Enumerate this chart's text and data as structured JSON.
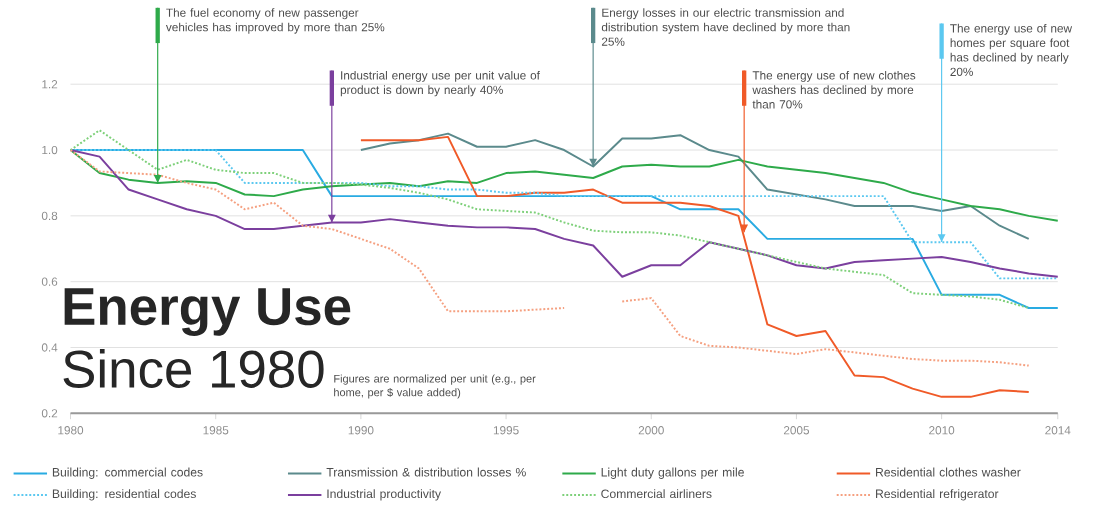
{
  "chart_data": {
    "type": "line",
    "title": "Energy Use",
    "subtitle": "Since 1980",
    "x": [
      1980,
      1981,
      1982,
      1983,
      1984,
      1985,
      1986,
      1987,
      1988,
      1989,
      1990,
      1991,
      1992,
      1993,
      1994,
      1995,
      1996,
      1997,
      1998,
      1999,
      2000,
      2001,
      2002,
      2003,
      2004,
      2005,
      2006,
      2007,
      2008,
      2009,
      2010,
      2011,
      2012,
      2013,
      2014
    ],
    "series": [
      {
        "name": "Building: commercial codes",
        "color": "#29abe2",
        "line_style": "solid",
        "values": [
          1.0,
          1.0,
          1.0,
          1.0,
          1.0,
          1.0,
          1.0,
          1.0,
          1.0,
          0.86,
          0.86,
          0.86,
          0.86,
          0.86,
          0.86,
          0.86,
          0.86,
          0.86,
          0.86,
          0.86,
          0.86,
          0.82,
          0.82,
          0.82,
          0.73,
          0.73,
          0.73,
          0.73,
          0.73,
          0.73,
          0.56,
          0.56,
          0.56,
          0.52,
          0.52
        ]
      },
      {
        "name": "Transmission & distribution losses %",
        "color": "#5b8a8c",
        "line_style": "solid",
        "values": [
          null,
          null,
          null,
          null,
          null,
          null,
          null,
          null,
          null,
          null,
          1.0,
          1.02,
          1.03,
          1.05,
          1.01,
          1.01,
          1.03,
          1.0,
          0.95,
          1.035,
          1.035,
          1.045,
          1.0,
          0.98,
          0.88,
          0.865,
          0.85,
          0.83,
          0.83,
          0.83,
          0.815,
          0.83,
          0.77,
          0.73,
          null
        ]
      },
      {
        "name": "Light duty gallons per mile",
        "color": "#2eaa4a",
        "line_style": "solid",
        "values": [
          1.0,
          0.93,
          0.91,
          0.9,
          0.905,
          0.9,
          0.865,
          0.86,
          0.88,
          0.89,
          0.895,
          0.9,
          0.89,
          0.905,
          0.9,
          0.93,
          0.935,
          0.925,
          0.915,
          0.95,
          0.955,
          0.95,
          0.95,
          0.97,
          0.95,
          0.94,
          0.93,
          0.915,
          0.9,
          0.87,
          0.85,
          0.83,
          0.82,
          0.8,
          0.785
        ]
      },
      {
        "name": "Residential clothes washer",
        "color": "#f05a28",
        "line_style": "solid",
        "values": [
          null,
          null,
          null,
          null,
          null,
          null,
          null,
          null,
          null,
          null,
          1.03,
          1.03,
          1.03,
          1.04,
          0.86,
          0.86,
          0.87,
          0.87,
          0.88,
          0.84,
          0.84,
          0.84,
          0.83,
          0.8,
          0.47,
          0.435,
          0.45,
          0.315,
          0.31,
          0.275,
          0.25,
          0.25,
          0.27,
          0.265,
          null
        ]
      },
      {
        "name": "Building: residential codes",
        "color": "#5bc8f0",
        "line_style": "dotted",
        "values": [
          1.0,
          1.0,
          1.0,
          1.0,
          1.0,
          1.0,
          0.9,
          0.9,
          0.9,
          0.9,
          0.9,
          0.89,
          0.89,
          0.88,
          0.88,
          0.87,
          0.87,
          0.86,
          0.86,
          0.86,
          0.86,
          0.86,
          0.86,
          0.86,
          0.86,
          0.86,
          0.86,
          0.86,
          0.86,
          0.72,
          0.72,
          0.72,
          0.61,
          0.61,
          0.61
        ]
      },
      {
        "name": "Industrial productivity",
        "color": "#7b3f9e",
        "line_style": "solid",
        "values": [
          1.0,
          0.98,
          0.88,
          0.85,
          0.82,
          0.8,
          0.76,
          0.76,
          0.77,
          0.78,
          0.78,
          0.79,
          0.78,
          0.77,
          0.765,
          0.765,
          0.76,
          0.73,
          0.71,
          0.615,
          0.65,
          0.65,
          0.72,
          0.7,
          0.68,
          0.65,
          0.64,
          0.66,
          0.665,
          0.67,
          0.675,
          0.66,
          0.64,
          0.625,
          0.615
        ]
      },
      {
        "name": "Commercial airliners",
        "color": "#7ed07a",
        "line_style": "dotted",
        "values": [
          1.0,
          1.06,
          1.0,
          0.94,
          0.97,
          0.94,
          0.93,
          0.93,
          0.9,
          0.9,
          0.895,
          0.885,
          0.87,
          0.85,
          0.82,
          0.815,
          0.81,
          0.78,
          0.755,
          0.75,
          0.75,
          0.74,
          0.72,
          0.7,
          0.68,
          0.66,
          0.64,
          0.63,
          0.62,
          0.565,
          0.56,
          0.555,
          0.545,
          0.52,
          null
        ]
      },
      {
        "name": "Residential refrigerator",
        "color": "#f5a080",
        "line_style": "dotted",
        "values": [
          1.0,
          0.935,
          0.93,
          0.925,
          0.9,
          0.88,
          0.82,
          0.84,
          0.77,
          0.76,
          0.73,
          0.7,
          0.64,
          0.51,
          0.51,
          0.51,
          0.515,
          0.52,
          null,
          0.54,
          0.55,
          0.435,
          0.405,
          0.4,
          0.39,
          0.38,
          0.395,
          0.385,
          0.375,
          0.365,
          0.36,
          0.36,
          0.355,
          0.345,
          null
        ]
      }
    ],
    "xlim": [
      1980,
      2014
    ],
    "ylim": [
      0.2,
      1.2
    ],
    "xticks": [
      1980,
      1985,
      1990,
      1995,
      2000,
      2005,
      2010,
      2014
    ],
    "yticks": [
      0.2,
      0.4,
      0.6,
      0.8,
      {
        "value": 1.0,
        "label": "1.0"
      },
      1.2
    ],
    "grid": "y",
    "legend": "bottom",
    "marker": "none",
    "annotations": [
      {
        "text": "The fuel economy of new passenger vehicles has improved by more than 25%",
        "x": 1983,
        "y": 0.9
      },
      {
        "text": "Industrial energy use per unit value of product is down by nearly 40%",
        "x": 1989,
        "y": 0.78
      },
      {
        "text": "Energy losses in our electric transmission and distribution system have declined by more than 25%",
        "x": 1998,
        "y": 0.95
      },
      {
        "text": "The energy use of new clothes washers has declined by more than 70%",
        "x": 2003.2,
        "y": 0.75
      },
      {
        "text": "The energy use of new homes per square foot has declined by nearly 20%",
        "x": 2010,
        "y": 0.72
      },
      "Figures are normalized per unit (e.g., per home, per $ value added)"
    ]
  }
}
